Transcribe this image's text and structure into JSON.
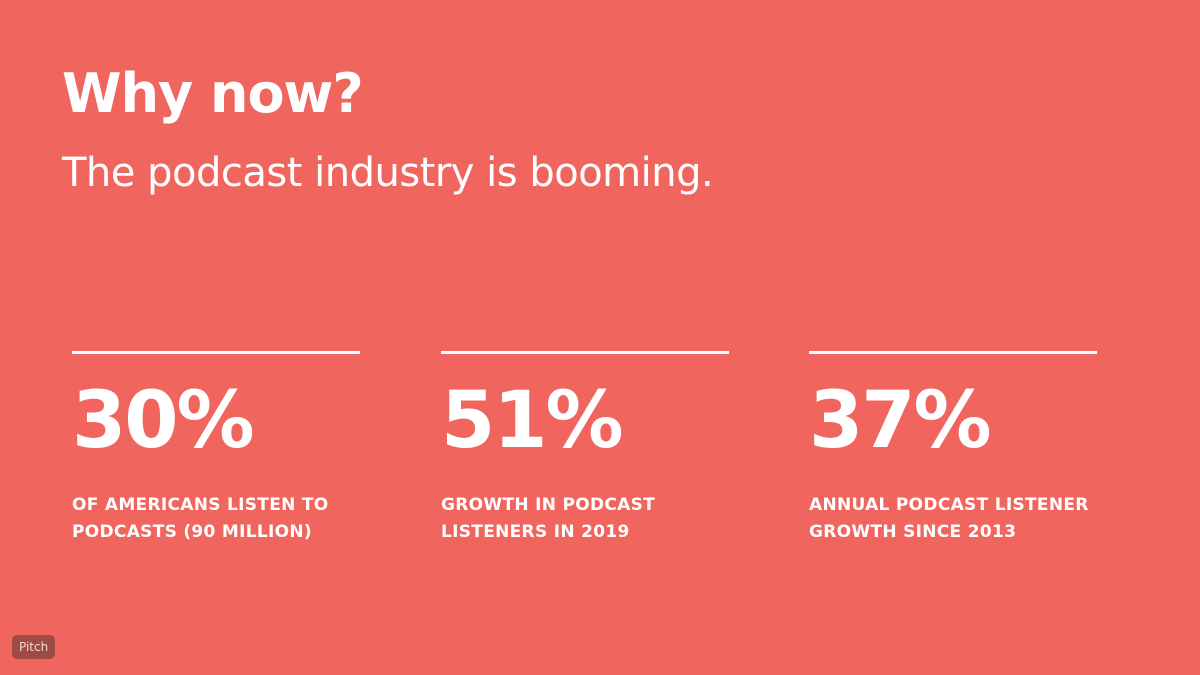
{
  "header": {
    "title": "Why now?",
    "subtitle": "The podcast industry is booming."
  },
  "stats": [
    {
      "value": "30%",
      "lines": [
        "OF AMERICANS LISTEN TO",
        "PODCASTS (90 MILLION)"
      ]
    },
    {
      "value": "51%",
      "lines": [
        "GROWTH IN PODCAST",
        "LISTENERS IN 2019"
      ]
    },
    {
      "value": "37%",
      "lines": [
        "ANNUAL PODCAST LISTENER",
        "GROWTH SINCE 2013"
      ]
    }
  ],
  "badge": "Pitch"
}
